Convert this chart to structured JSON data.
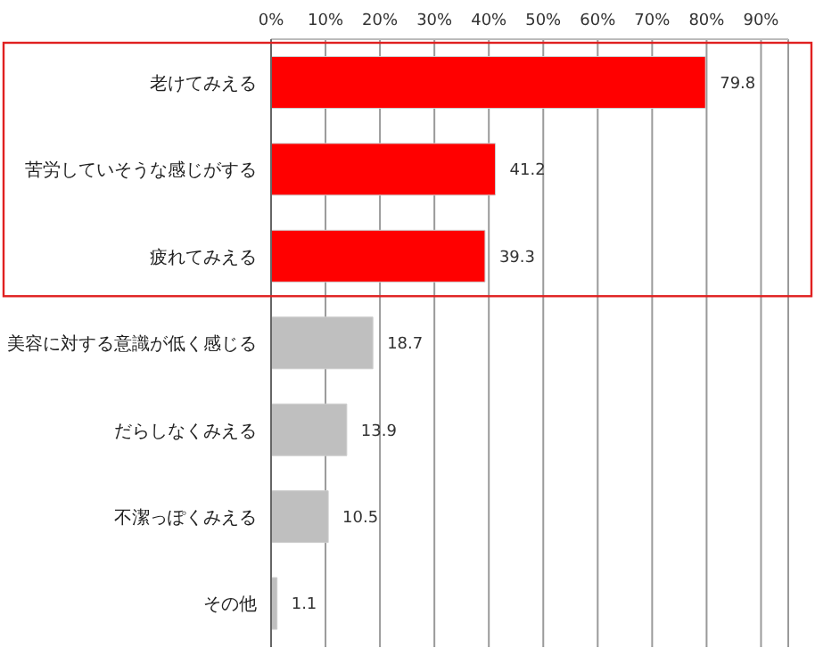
{
  "chart_data": {
    "type": "bar",
    "orientation": "horizontal",
    "categories": [
      "老けてみえる",
      "苦労していそうな感じがする",
      "疲れてみえる",
      "美容に対する意識が低く感じる",
      "だらしなくみえる",
      "不潔っぽくみえる",
      "その他"
    ],
    "values": [
      79.8,
      41.2,
      39.3,
      18.7,
      13.9,
      10.5,
      1.1
    ],
    "colors": [
      "#ff0000",
      "#ff0000",
      "#ff0000",
      "#bfbfbf",
      "#bfbfbf",
      "#bfbfbf",
      "#bfbfbf"
    ],
    "xlim": [
      0,
      95
    ],
    "xticks": [
      {
        "value": 0,
        "label": "0%"
      },
      {
        "value": 10,
        "label": "10%"
      },
      {
        "value": 20,
        "label": "20%"
      },
      {
        "value": 30,
        "label": "30%"
      },
      {
        "value": 40,
        "label": "40%"
      },
      {
        "value": 50,
        "label": "50%"
      },
      {
        "value": 60,
        "label": "60%"
      },
      {
        "value": 70,
        "label": "70%"
      },
      {
        "value": 80,
        "label": "80%"
      },
      {
        "value": 90,
        "label": "90%"
      }
    ],
    "grid": "x",
    "data_labels": true
  }
}
